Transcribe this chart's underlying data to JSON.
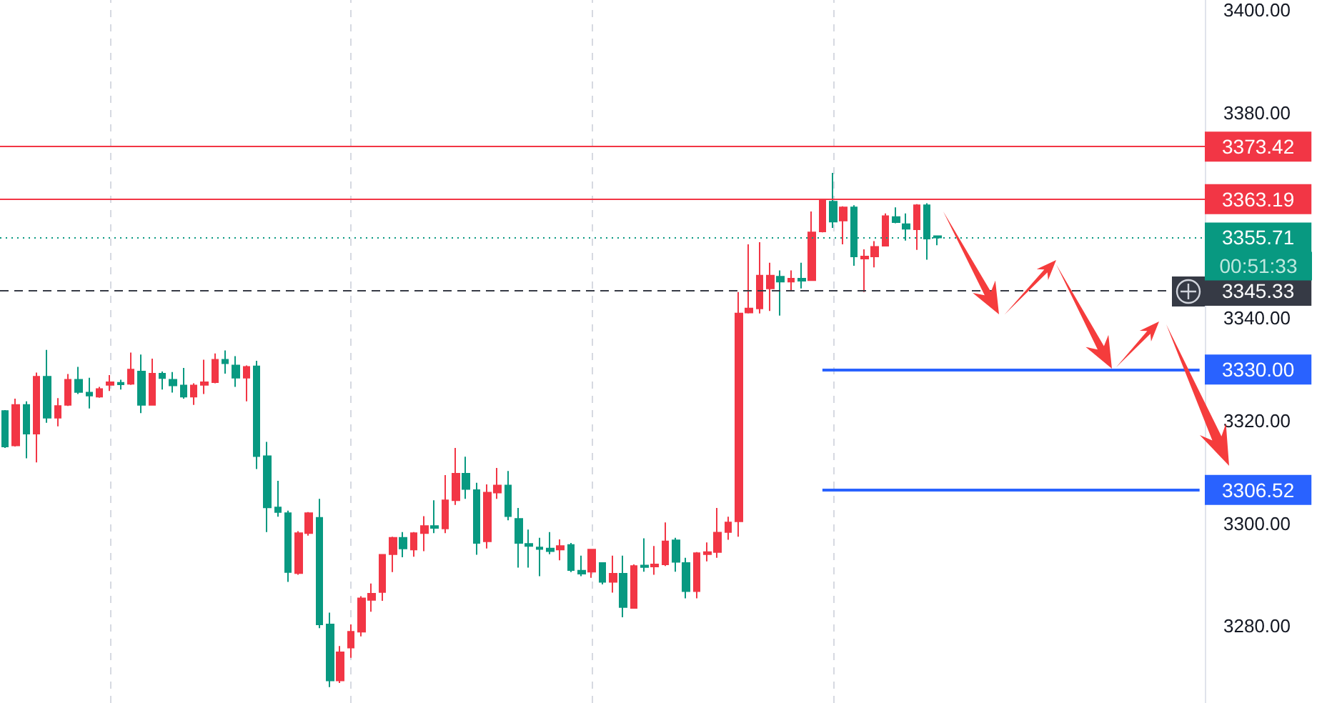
{
  "chart_data": {
    "type": "candlestick",
    "categories": [
      null,
      null,
      null,
      null,
      null,
      null,
      null,
      null,
      null,
      null,
      null,
      null,
      null,
      null,
      null,
      null,
      null,
      null,
      null,
      null,
      null,
      null,
      null,
      null,
      null,
      null,
      null,
      null,
      null,
      null,
      null,
      null,
      null,
      null,
      null,
      null,
      null,
      null,
      null,
      null,
      null,
      null,
      null,
      null,
      null,
      null,
      null,
      null,
      null,
      null,
      null,
      null,
      null,
      null,
      null,
      null,
      null,
      null,
      null,
      null,
      null,
      null,
      null,
      null,
      null,
      null,
      null,
      null,
      null,
      null,
      null,
      null,
      null,
      null,
      null,
      null,
      null,
      null,
      null,
      null,
      null,
      null,
      null,
      null,
      null,
      null,
      null,
      null,
      null,
      null,
      null,
      null,
      null,
      null,
      null,
      null,
      null,
      null,
      null,
      null,
      null,
      null,
      null,
      null,
      null,
      null,
      null,
      null,
      null,
      null,
      null,
      null,
      null,
      null,
      null
    ],
    "ohlc": [
      [
        3321.9,
        3322.1,
        3314.7,
        3315.0
      ],
      [
        3315.2,
        3324.3,
        3315.0,
        3323.1
      ],
      [
        3323.1,
        3323.8,
        3312.7,
        3317.5
      ],
      [
        3317.5,
        3329.4,
        3311.9,
        3328.6
      ],
      [
        3328.6,
        3333.8,
        3319.6,
        3320.6
      ],
      [
        3320.6,
        3324.4,
        3318.9,
        3322.9
      ],
      [
        3323.1,
        3329.1,
        3322.9,
        3328.0
      ],
      [
        3328.0,
        3330.5,
        3325.2,
        3325.6
      ],
      [
        3325.5,
        3328.4,
        3322.4,
        3324.9
      ],
      [
        3324.7,
        3326.6,
        3324.5,
        3326.2
      ],
      [
        3327.0,
        3328.9,
        3325.8,
        3327.5
      ],
      [
        3327.4,
        3328.0,
        3326.1,
        3327.1
      ],
      [
        3327.2,
        3333.3,
        3327.0,
        3330.0
      ],
      [
        3329.6,
        3332.9,
        3321.5,
        3323.1
      ],
      [
        3323.1,
        3332.1,
        3323.0,
        3329.2
      ],
      [
        3329.2,
        3329.6,
        3326.1,
        3328.3
      ],
      [
        3328.0,
        3329.5,
        3325.5,
        3326.9
      ],
      [
        3326.9,
        3330.3,
        3324.3,
        3324.7
      ],
      [
        3324.7,
        3327.3,
        3323.1,
        3326.9
      ],
      [
        3327.0,
        3331.9,
        3325.2,
        3327.5
      ],
      [
        3327.5,
        3333.1,
        3327.3,
        3331.9
      ],
      [
        3331.9,
        3333.7,
        3329.2,
        3331.2
      ],
      [
        3330.8,
        3332.6,
        3326.6,
        3328.4
      ],
      [
        3328.4,
        3330.8,
        3323.8,
        3330.5
      ],
      [
        3330.6,
        3331.7,
        3310.6,
        3313.1
      ],
      [
        3313.1,
        3315.9,
        3298.3,
        3303.1
      ],
      [
        3303.1,
        3308.3,
        3301.3,
        3302.2
      ],
      [
        3302.0,
        3302.5,
        3288.6,
        3290.5
      ],
      [
        3290.3,
        3298.5,
        3290.0,
        3298.1
      ],
      [
        3298.1,
        3302.2,
        3297.6,
        3302.0
      ],
      [
        3301.1,
        3304.8,
        3279.6,
        3280.3
      ],
      [
        3280.3,
        3282.6,
        3268.1,
        3269.4
      ],
      [
        3269.4,
        3276.1,
        3268.9,
        3274.9
      ],
      [
        3275.8,
        3280.3,
        3273.8,
        3278.9
      ],
      [
        3278.9,
        3285.8,
        3278.0,
        3285.4
      ],
      [
        3285.1,
        3288.3,
        3282.8,
        3286.3
      ],
      [
        3286.6,
        3294.0,
        3284.9,
        3293.9
      ],
      [
        3294.0,
        3297.4,
        3290.5,
        3297.2
      ],
      [
        3297.2,
        3298.3,
        3293.4,
        3295.1
      ],
      [
        3294.9,
        3298.3,
        3293.5,
        3298.1
      ],
      [
        3298.1,
        3301.4,
        3294.6,
        3299.5
      ],
      [
        3299.5,
        3304.5,
        3298.1,
        3299.1
      ],
      [
        3299.0,
        3309.4,
        3298.1,
        3304.5
      ],
      [
        3304.5,
        3314.7,
        3303.6,
        3309.7
      ],
      [
        3309.7,
        3313.0,
        3304.8,
        3306.7
      ],
      [
        3306.5,
        3307.9,
        3293.9,
        3296.2
      ],
      [
        3296.5,
        3307.6,
        3295.1,
        3306.0
      ],
      [
        3306.0,
        3310.8,
        3304.8,
        3307.4
      ],
      [
        3307.4,
        3310.2,
        3300.6,
        3301.4
      ],
      [
        3300.9,
        3303.0,
        3291.4,
        3296.2
      ],
      [
        3296.0,
        3298.8,
        3291.4,
        3295.6
      ],
      [
        3295.3,
        3297.2,
        3289.7,
        3295.0
      ],
      [
        3295.1,
        3298.3,
        3294.0,
        3294.6
      ],
      [
        3294.9,
        3296.9,
        3292.8,
        3295.6
      ],
      [
        3295.8,
        3296.2,
        3290.5,
        3290.9
      ],
      [
        3290.8,
        3293.7,
        3289.7,
        3290.2
      ],
      [
        3290.6,
        3294.9,
        3289.4,
        3294.9
      ],
      [
        3292.3,
        3292.3,
        3288.1,
        3288.6
      ],
      [
        3288.6,
        3293.7,
        3286.5,
        3290.2
      ],
      [
        3290.2,
        3293.7,
        3281.7,
        3283.7
      ],
      [
        3283.5,
        3292.0,
        3283.5,
        3291.7
      ],
      [
        3291.8,
        3297.1,
        3290.6,
        3291.5
      ],
      [
        3291.6,
        3295.6,
        3290.0,
        3292.0
      ],
      [
        3292.0,
        3300.2,
        3291.7,
        3296.5
      ],
      [
        3296.7,
        3297.2,
        3290.6,
        3292.5
      ],
      [
        3292.3,
        3293.3,
        3285.4,
        3286.8
      ],
      [
        3286.8,
        3294.4,
        3285.4,
        3294.2
      ],
      [
        3294.0,
        3296.3,
        3292.6,
        3294.4
      ],
      [
        3294.4,
        3303.0,
        3293.3,
        3298.2
      ],
      [
        3298.3,
        3301.3,
        3296.8,
        3300.2
      ],
      [
        3300.4,
        3345.1,
        3297.4,
        3340.9
      ],
      [
        3341.1,
        3354.4,
        3340.9,
        3341.9
      ],
      [
        3341.9,
        3354.8,
        3340.9,
        3348.3
      ],
      [
        3345.8,
        3350.8,
        3341.4,
        3348.3
      ],
      [
        3348.1,
        3349.3,
        3340.5,
        3347.1
      ],
      [
        3347.1,
        3349.3,
        3345.3,
        3347.7
      ],
      [
        3347.7,
        3350.8,
        3345.8,
        3347.3
      ],
      [
        3347.4,
        3360.8,
        3347.4,
        3356.7
      ],
      [
        3356.9,
        3363.1,
        3356.7,
        3362.9
      ],
      [
        3362.7,
        3368.3,
        3357.6,
        3358.8
      ],
      [
        3359.0,
        3361.8,
        3354.4,
        3361.6
      ],
      [
        3361.6,
        3362.0,
        3350.2,
        3352.0
      ],
      [
        3351.6,
        3353.4,
        3345.1,
        3352.0
      ],
      [
        3352.0,
        3355.0,
        3349.9,
        3353.9
      ],
      [
        3354.1,
        3360.4,
        3354.1,
        3359.9
      ],
      [
        3359.7,
        3361.6,
        3358.5,
        3358.7
      ],
      [
        3358.3,
        3360.4,
        3355.1,
        3357.4
      ],
      [
        3357.3,
        3362.2,
        3353.3,
        3362.0
      ],
      [
        3362.0,
        3362.4,
        3351.4,
        3355.5
      ],
      [
        3356.0,
        3356.0,
        3354.2,
        3355.7
      ],
      null,
      null,
      null,
      null,
      null,
      null,
      null,
      null,
      null,
      null,
      null,
      null,
      null,
      null,
      null,
      null,
      null,
      null,
      null,
      null,
      null,
      null,
      null,
      null,
      null
    ],
    "colors": [
      "#089981",
      "#f23645",
      "#089981",
      "#f23645",
      "#089981",
      "#f23645",
      "#f23645",
      "#089981",
      "#089981",
      "#f23645",
      "#f23645",
      "#089981",
      "#f23645",
      "#089981",
      "#f23645",
      "#089981",
      "#089981",
      "#089981",
      "#f23645",
      "#f23645",
      "#f23645",
      "#089981",
      "#089981",
      "#f23645",
      "#089981",
      "#089981",
      "#089981",
      "#089981",
      "#f23645",
      "#f23645",
      "#089981",
      "#089981",
      "#f23645",
      "#f23645",
      "#f23645",
      "#f23645",
      "#f23645",
      "#f23645",
      "#089981",
      "#f23645",
      "#f23645",
      "#089981",
      "#f23645",
      "#f23645",
      "#089981",
      "#089981",
      "#f23645",
      "#f23645",
      "#089981",
      "#089981",
      "#089981",
      "#089981",
      "#089981",
      "#f23645",
      "#089981",
      "#089981",
      "#f23645",
      "#089981",
      "#f23645",
      "#089981",
      "#f23645",
      "#089981",
      "#f23645",
      "#f23645",
      "#089981",
      "#089981",
      "#f23645",
      "#f23645",
      "#f23645",
      "#f23645",
      "#f23645",
      "#f23645",
      "#f23645",
      "#f23645",
      "#089981",
      "#f23645",
      "#089981",
      "#f23645",
      "#f23645",
      "#089981",
      "#f23645",
      "#089981",
      "#f23645",
      "#f23645",
      "#f23645",
      "#089981",
      "#089981",
      "#f23645",
      "#089981",
      "#089981",
      null,
      null,
      null,
      null,
      null,
      null,
      null,
      null,
      null,
      null,
      null,
      null,
      null,
      null,
      null,
      null,
      null,
      null,
      null,
      null,
      null,
      null,
      null,
      null,
      null
    ],
    "ylim": [
      3265,
      3402
    ],
    "yticks": [
      {
        "value": 3280,
        "label": "3280.00"
      },
      {
        "value": 3300,
        "label": "3300.00"
      },
      {
        "value": 3320,
        "label": "3320.00"
      },
      {
        "value": 3340,
        "label": "3340.00"
      },
      {
        "value": 3380,
        "label": "3380.00"
      },
      {
        "value": 3400,
        "label": "3400.00"
      }
    ],
    "ref_lines": [
      {
        "axis": "y",
        "value": 3373.42,
        "label": "3373.42",
        "color": "#f23645",
        "line_style": "solid"
      },
      {
        "axis": "y",
        "value": 3363.19,
        "label": "3363.19",
        "color": "#f23645",
        "line_style": "solid"
      },
      {
        "axis": "y",
        "value": 3355.71,
        "label": "3355.71",
        "color": "#089981",
        "line_style": "dotted"
      },
      {
        "axis": "y",
        "value": 3345.33,
        "label": "3345.33",
        "color": "#363a45",
        "line_style": "dashed"
      },
      {
        "axis": "y",
        "value": 3330.0,
        "label": "3330.00",
        "color": "#2962ff",
        "line_style": "solid"
      },
      {
        "axis": "y",
        "value": 3306.52,
        "label": "3306.52",
        "color": "#2962ff",
        "line_style": "solid"
      }
    ],
    "annotations": [
      "00:51:33"
    ],
    "grid": "x",
    "tick_labels": "y"
  }
}
